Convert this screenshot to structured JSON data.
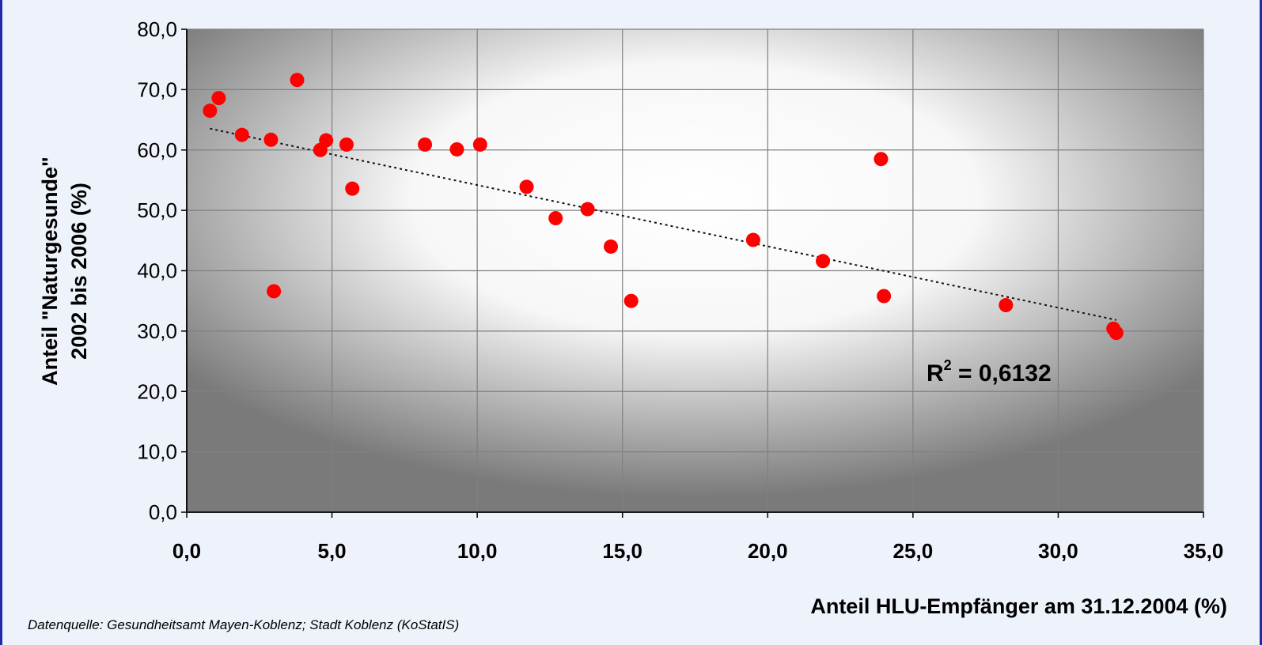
{
  "chart_data": {
    "type": "scatter",
    "xlabel": "Anteil HLU-Empfänger am 31.12.2004 (%)",
    "ylabel_lines": [
      "Anteil \"Naturgesunde\"",
      "2002 bis 2006 (%)"
    ],
    "xlim": [
      0,
      35
    ],
    "ylim": [
      0,
      80
    ],
    "x_ticks": [
      "0,0",
      "5,0",
      "10,0",
      "15,0",
      "20,0",
      "25,0",
      "30,0",
      "35,0"
    ],
    "y_ticks": [
      "0,0",
      "10,0",
      "20,0",
      "30,0",
      "40,0",
      "50,0",
      "60,0",
      "70,0",
      "80,0"
    ],
    "grid": true,
    "point_color": "#ff0000",
    "trendline": {
      "type": "linear",
      "style": "dotted",
      "x_range": [
        0.8,
        32.0
      ],
      "r_squared_base": "R",
      "r_squared_exp": "2",
      "r_squared_value": " = 0,6132"
    },
    "points": [
      {
        "x": 0.8,
        "y": 66.5
      },
      {
        "x": 1.1,
        "y": 68.6
      },
      {
        "x": 1.9,
        "y": 62.5
      },
      {
        "x": 2.9,
        "y": 61.7
      },
      {
        "x": 3.0,
        "y": 36.6
      },
      {
        "x": 3.8,
        "y": 71.6
      },
      {
        "x": 4.6,
        "y": 60.0
      },
      {
        "x": 4.8,
        "y": 61.6
      },
      {
        "x": 5.5,
        "y": 60.9
      },
      {
        "x": 5.7,
        "y": 53.6
      },
      {
        "x": 8.2,
        "y": 60.9
      },
      {
        "x": 9.3,
        "y": 60.1
      },
      {
        "x": 10.1,
        "y": 60.9
      },
      {
        "x": 11.7,
        "y": 53.9
      },
      {
        "x": 12.7,
        "y": 48.7
      },
      {
        "x": 13.8,
        "y": 50.2
      },
      {
        "x": 14.6,
        "y": 44.0
      },
      {
        "x": 15.3,
        "y": 35.0
      },
      {
        "x": 19.5,
        "y": 45.1
      },
      {
        "x": 21.9,
        "y": 41.6
      },
      {
        "x": 23.9,
        "y": 58.5
      },
      {
        "x": 24.0,
        "y": 35.8
      },
      {
        "x": 28.2,
        "y": 34.3
      },
      {
        "x": 31.9,
        "y": 30.4
      },
      {
        "x": 32.0,
        "y": 29.7
      }
    ]
  },
  "source_note": "Datenquelle: Gesundheitsamt Mayen-Koblenz;  Stadt Koblenz (KoStatIS)"
}
